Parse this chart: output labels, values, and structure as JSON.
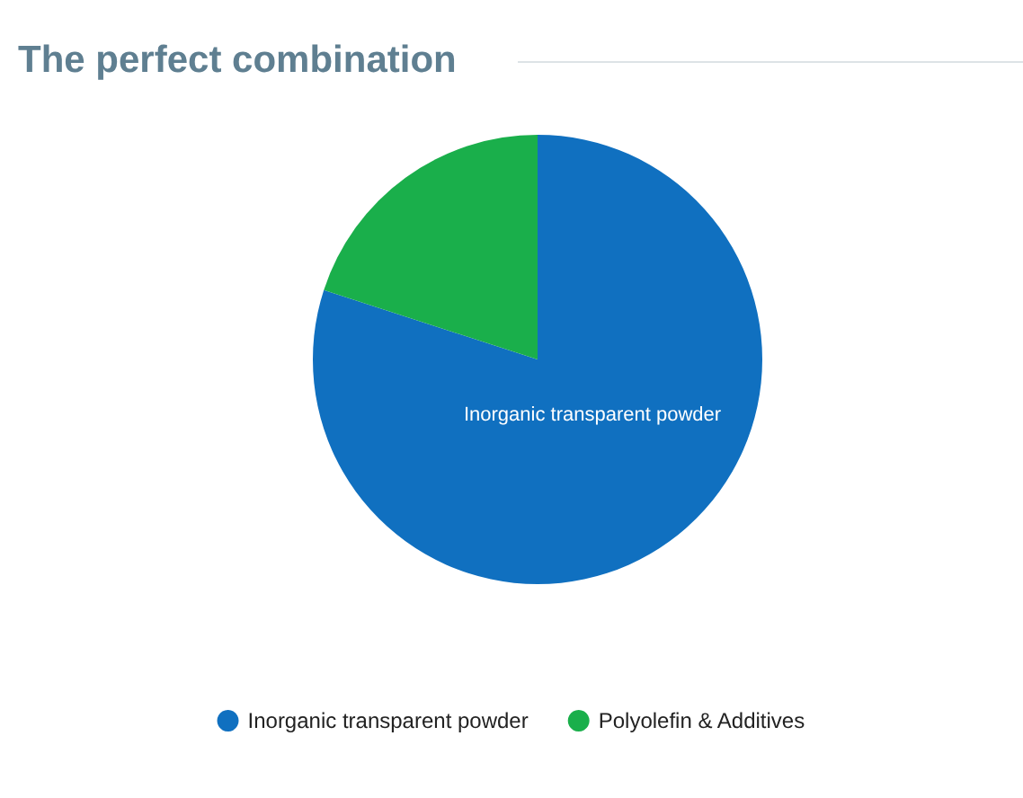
{
  "chart_data": {
    "type": "pie",
    "title": "The perfect combination",
    "categories": [
      "Inorganic transparent powder",
      "Polyolefin & Additives"
    ],
    "values": [
      80,
      20
    ],
    "colors": [
      "#1070c0",
      "#1aaf4b"
    ],
    "value_labels": [
      "Inorganic transparent powder",
      null
    ],
    "legend": "bottom"
  }
}
